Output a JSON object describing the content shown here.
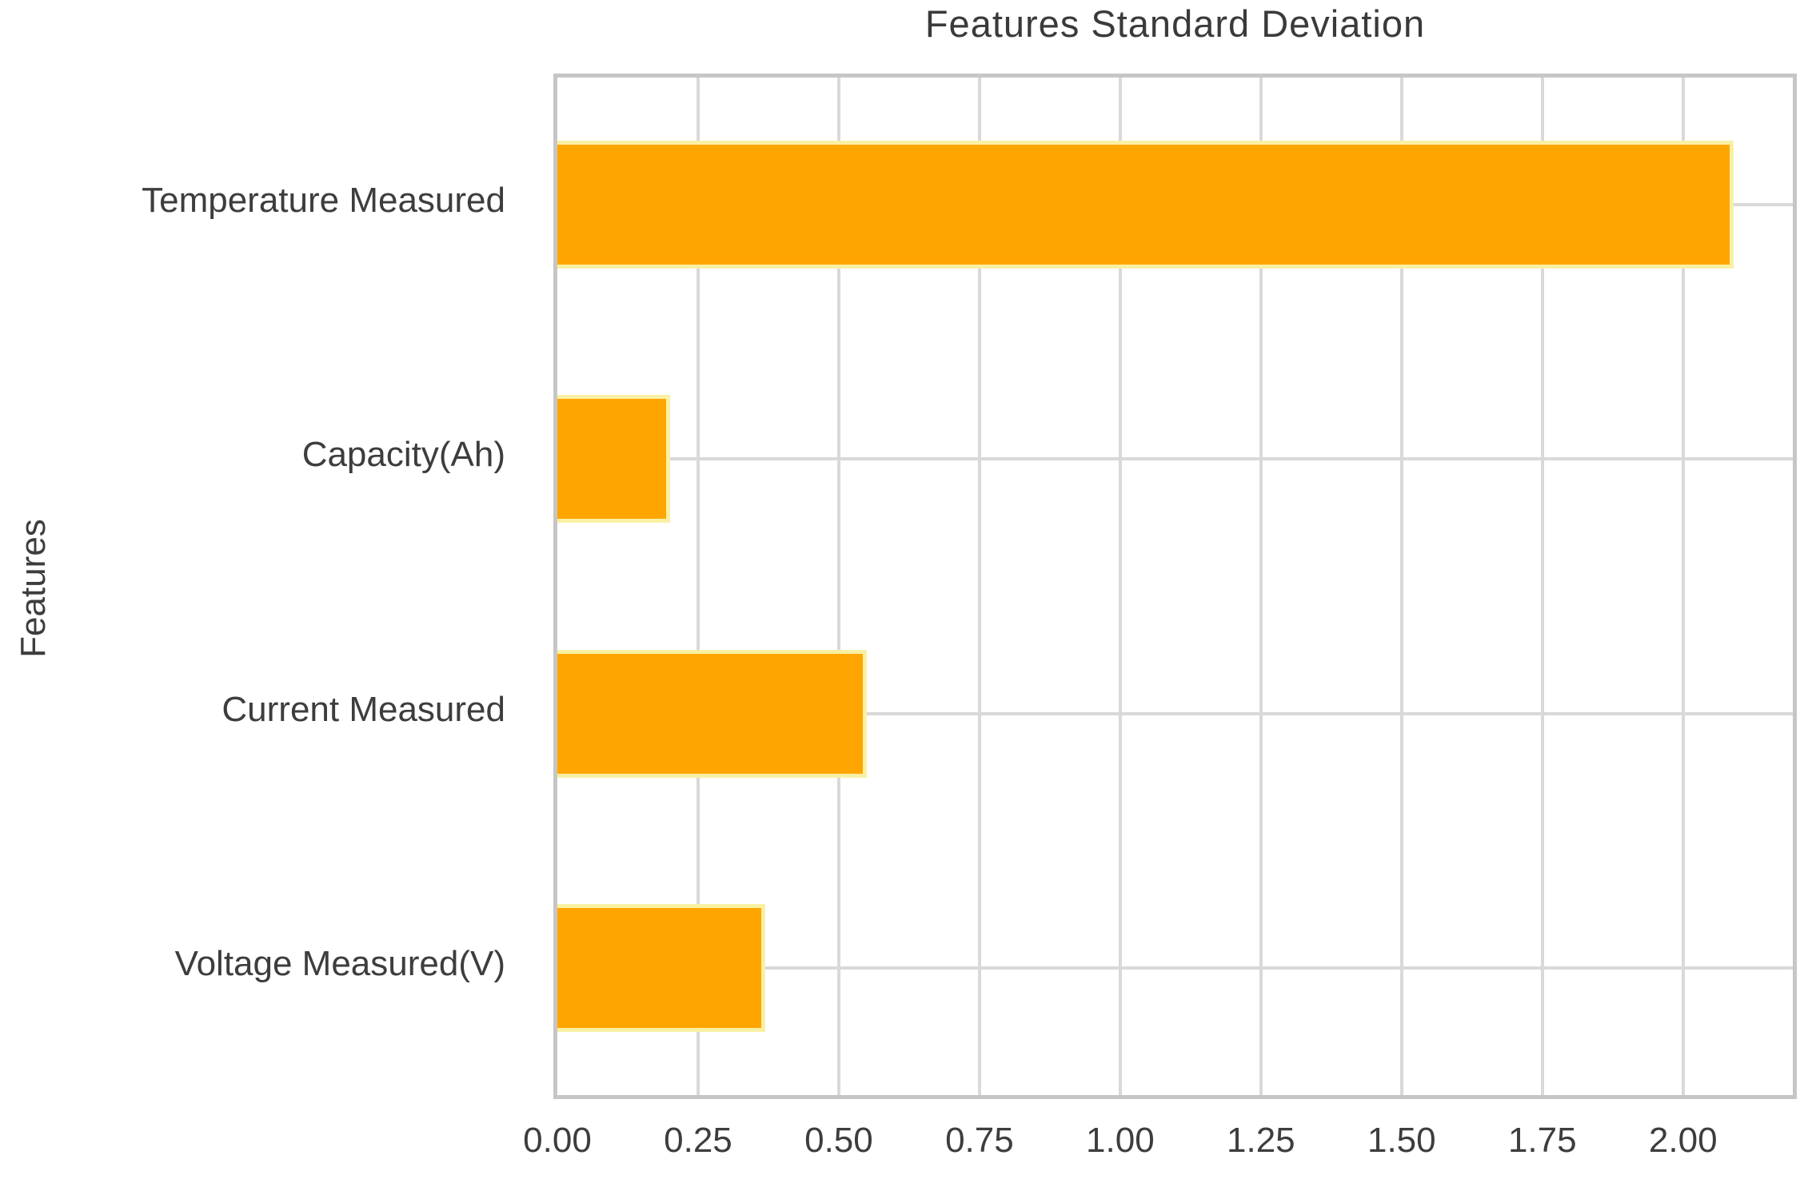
{
  "chart_data": {
    "type": "bar",
    "orientation": "horizontal",
    "title": "Features Standard Deviation",
    "xlabel": "",
    "ylabel": "Features",
    "categories": [
      "Temperature Measured",
      "Capacity(Ah)",
      "Current Measured",
      "Voltage Measured(V)"
    ],
    "values": [
      2.09,
      0.2,
      0.55,
      0.37
    ],
    "xlim": [
      0,
      2.195
    ],
    "xticks": [
      0.0,
      0.25,
      0.5,
      0.75,
      1.0,
      1.25,
      1.5,
      1.75,
      2.0
    ],
    "xtick_labels": [
      "0.00",
      "0.25",
      "0.50",
      "0.75",
      "1.00",
      "1.25",
      "1.50",
      "1.75",
      "2.00"
    ],
    "grid": true,
    "legend": "none",
    "colors": {
      "bar_fill": "#ffa500",
      "bar_edge": "#faf0a4",
      "gridline": "#d9d9d9",
      "spine": "#c6c6c6",
      "text": "#3d3d3d",
      "background": "#ffffff"
    }
  }
}
